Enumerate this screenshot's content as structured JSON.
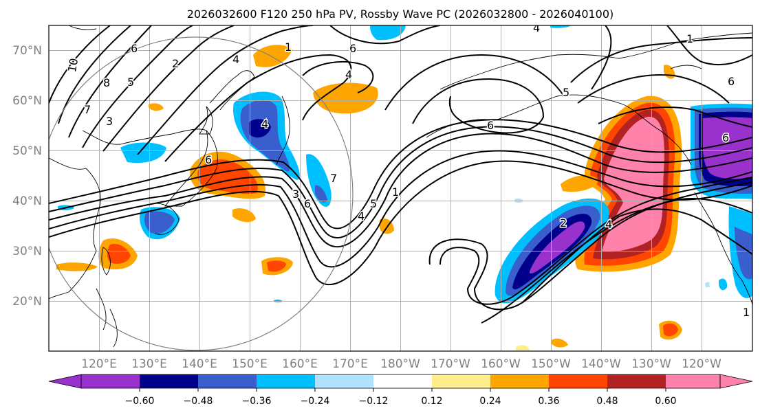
{
  "title": "2026032600 F120 250 hPa PV, Rossby Wave PC (2026032800 - 2026040100)",
  "lon_labels": [
    "120°E",
    "130°E",
    "140°E",
    "150°E",
    "160°E",
    "170°E",
    "180°W",
    "170°W",
    "160°W",
    "150°W",
    "140°W",
    "130°W",
    "120°W"
  ],
  "lat_labels": [
    "70°N",
    "60°N",
    "50°N",
    "40°N",
    "30°N",
    "20°N"
  ],
  "contour_labels": [
    "10",
    "8",
    "7",
    "6",
    "5",
    "4",
    "3",
    "2",
    "1"
  ],
  "colorbar": {
    "colors": [
      "#9932cc",
      "#00008b",
      "#3a5fcd",
      "#00bfff",
      "#b0e2ff",
      "#ffffff",
      "#ffec8b",
      "#ffa500",
      "#ff4500",
      "#b22222",
      "#ff82ab"
    ],
    "ticks": [
      "−0.60",
      "−0.48",
      "−0.36",
      "−0.24",
      "−0.12",
      "0.12",
      "0.24",
      "0.36",
      "0.48",
      "0.60"
    ]
  },
  "colors": {
    "axis_label": "#808080",
    "grid": "#b0b0b0",
    "contour": "#000000",
    "circle": "#808080"
  }
}
